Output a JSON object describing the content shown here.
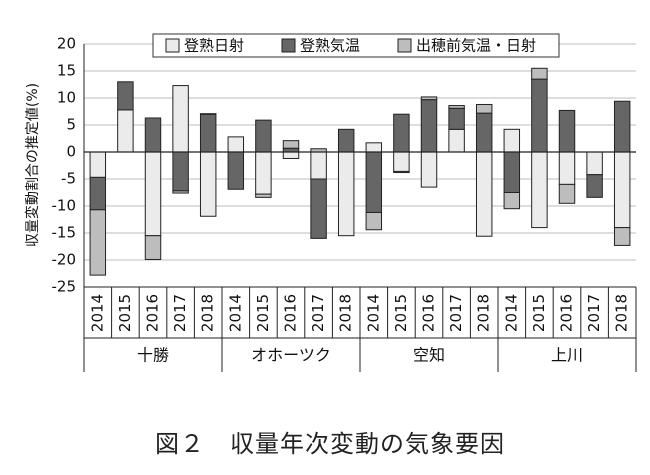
{
  "chart_data": {
    "type": "bar",
    "stacked": true,
    "caption": "図２　収量年次変動の気象要因",
    "ylabel": "収量変動割合の推定値(%)",
    "ylim": [
      -25,
      20
    ],
    "yticks": [
      -25,
      -20,
      -15,
      -10,
      -5,
      0,
      5,
      10,
      15,
      20
    ],
    "grid": true,
    "legend_position": "top-center",
    "groups": [
      {
        "name": "十勝",
        "years": [
          "2014",
          "2015",
          "2016",
          "2017",
          "2018"
        ]
      },
      {
        "name": "オホーツク",
        "years": [
          "2014",
          "2015",
          "2016",
          "2017",
          "2018"
        ]
      },
      {
        "name": "空知",
        "years": [
          "2014",
          "2015",
          "2016",
          "2017",
          "2018"
        ]
      },
      {
        "name": "上川",
        "years": [
          "2014",
          "2015",
          "2016",
          "2017",
          "2018"
        ]
      }
    ],
    "series": [
      {
        "name": "登熟日射",
        "color": "#ebebeb",
        "values": [
          -4.7,
          7.8,
          -15.5,
          12.3,
          -11.9,
          2.8,
          -7.8,
          -1.2,
          -5.0,
          -15.5,
          1.7,
          -3.6,
          -6.5,
          4.2,
          -15.6,
          4.2,
          -14.0,
          -6.0,
          -4.2,
          -14.0
        ]
      },
      {
        "name": "登熟気温",
        "color": "#666666",
        "values": [
          -6.0,
          5.2,
          6.3,
          -7.2,
          7.0,
          -6.9,
          5.9,
          0.7,
          -11.0,
          4.2,
          -11.2,
          7.0,
          9.7,
          3.9,
          7.2,
          -7.5,
          13.5,
          7.7,
          -4.2,
          9.4
        ]
      },
      {
        "name": "出穂前気温・日射",
        "color": "#bdbdbd",
        "values": [
          -12.1,
          0.0,
          -4.4,
          -0.4,
          0.1,
          0.0,
          -0.6,
          1.4,
          0.6,
          0.0,
          -3.2,
          -0.2,
          0.5,
          0.5,
          1.6,
          -3.0,
          2.0,
          -3.5,
          0.0,
          -3.3
        ]
      }
    ]
  }
}
